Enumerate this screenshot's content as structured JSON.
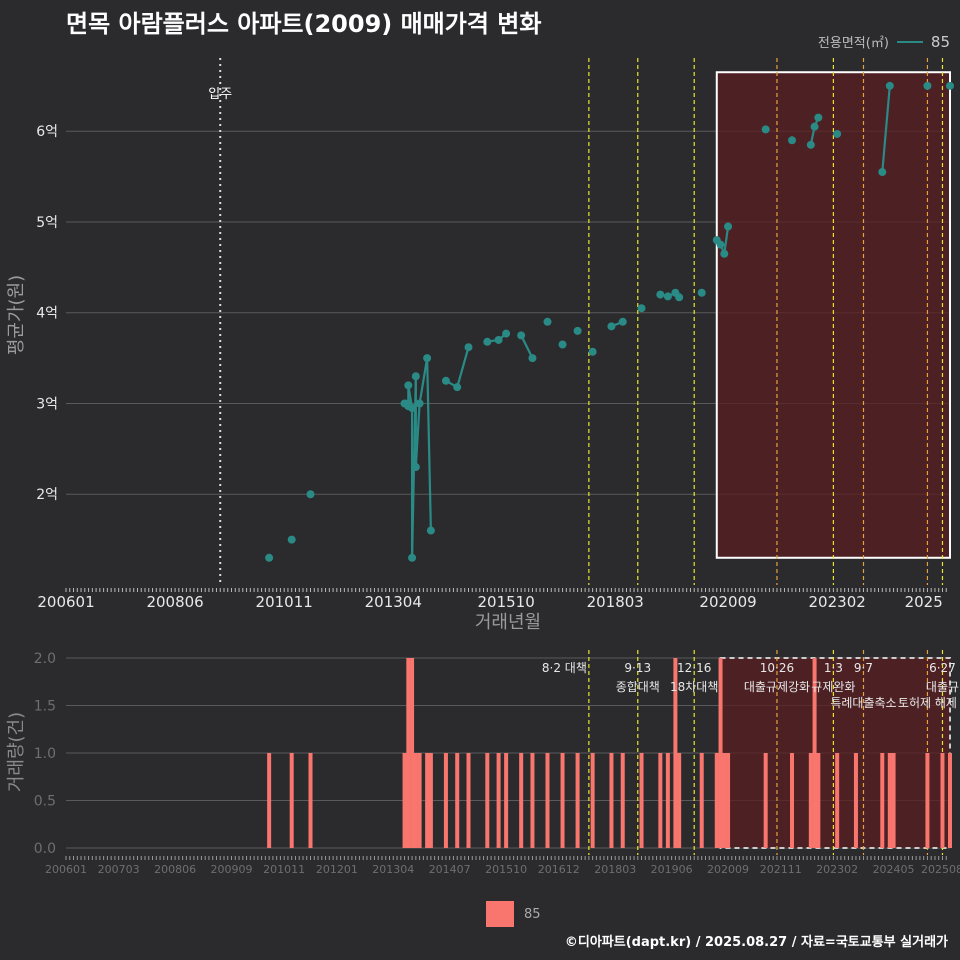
{
  "title": "면목 아람플러스 아파트(2009) 매매가격 변화",
  "footer": "©디아파트(dapt.kr) / 2025.08.27 / 자료=국토교통부 실거래가",
  "legend_top": {
    "title": "전용면적(㎡)",
    "label": "85"
  },
  "legend_bottom": {
    "label": "85"
  },
  "colors": {
    "background": "#2b2b2d",
    "price_series": "#2a8a86",
    "volume_bars": "#f8766d",
    "policy_line_yellow": "#e6e62e",
    "policy_line_orange": "#e6a23a",
    "highlight_box": "#5a1e22"
  },
  "chart_data": [
    {
      "type": "line",
      "name": "price",
      "ylabel": "평균가(원)",
      "xlabel": "거래년월",
      "y_unit": "억",
      "yticks": [
        {
          "v": 2,
          "label": "2억"
        },
        {
          "v": 3,
          "label": "3억"
        },
        {
          "v": 4,
          "label": "4억"
        },
        {
          "v": 5,
          "label": "5억"
        },
        {
          "v": 6,
          "label": "6억"
        }
      ],
      "ylim": [
        1.0,
        6.95
      ],
      "xlim": [
        "2006-01",
        "2025-08"
      ],
      "xticks": [
        "200601",
        "200806",
        "201011",
        "201304",
        "201510",
        "201803",
        "202009",
        "202302",
        "2025"
      ],
      "grid": "horizontal",
      "vertical_marker": {
        "x": "2009-06",
        "label": "입주"
      },
      "highlight_box": {
        "x0": "2020-06",
        "x1": "2025-08",
        "y0": 1.3,
        "y1": 6.65
      },
      "series": [
        {
          "name": "85",
          "points": [
            [
              "2010-07",
              1.3
            ],
            [
              "2011-01",
              1.5
            ],
            [
              "2011-06",
              2.0
            ],
            [
              "2013-07",
              3.0
            ],
            [
              "2013-08",
              2.97
            ],
            [
              "2013-08",
              3.0
            ],
            [
              "2013-08",
              3.2
            ],
            [
              "2013-09",
              2.95
            ],
            [
              "2013-09",
              1.3
            ],
            [
              "2013-10",
              3.3
            ],
            [
              "2013-10",
              2.3
            ],
            [
              "2013-11",
              3.0
            ],
            [
              "2014-01",
              3.5
            ],
            [
              "2014-02",
              1.6
            ],
            [
              "2014-06",
              3.25
            ],
            [
              "2014-09",
              3.18
            ],
            [
              "2014-12",
              3.62
            ],
            [
              "2015-05",
              3.68
            ],
            [
              "2015-08",
              3.7
            ],
            [
              "2015-10",
              3.77
            ],
            [
              "2016-02",
              3.75
            ],
            [
              "2016-05",
              3.5
            ],
            [
              "2016-09",
              3.9
            ],
            [
              "2017-01",
              3.65
            ],
            [
              "2017-05",
              3.8
            ],
            [
              "2017-09",
              3.57
            ],
            [
              "2018-02",
              3.85
            ],
            [
              "2018-05",
              3.9
            ],
            [
              "2018-10",
              4.05
            ],
            [
              "2019-03",
              4.2
            ],
            [
              "2019-05",
              4.18
            ],
            [
              "2019-07",
              4.22
            ],
            [
              "2019-08",
              4.17
            ],
            [
              "2020-02",
              4.22
            ],
            [
              "2020-06",
              4.8
            ],
            [
              "2020-07",
              4.75
            ],
            [
              "2020-08",
              4.65
            ],
            [
              "2020-09",
              4.95
            ],
            [
              "2021-07",
              6.02
            ],
            [
              "2022-02",
              5.9
            ],
            [
              "2022-07",
              5.85
            ],
            [
              "2022-08",
              6.05
            ],
            [
              "2022-09",
              6.15
            ],
            [
              "2023-02",
              5.97
            ],
            [
              "2024-02",
              5.55
            ],
            [
              "2024-04",
              6.5
            ],
            [
              "2025-02",
              6.5
            ],
            [
              "2025-08",
              6.5
            ]
          ]
        }
      ]
    },
    {
      "type": "bar",
      "name": "volume",
      "ylabel": "거래량(건)",
      "ylim": [
        0,
        2.0
      ],
      "yticks": [
        {
          "v": 0,
          "label": "0.0"
        },
        {
          "v": 0.5,
          "label": "0.5"
        },
        {
          "v": 1.0,
          "label": "1.0"
        },
        {
          "v": 1.5,
          "label": "1.5"
        },
        {
          "v": 2.0,
          "label": "2.0"
        }
      ],
      "xticks": [
        "200601",
        "200703",
        "200806",
        "200909",
        "201011",
        "201201",
        "201304",
        "201407",
        "201510",
        "201612",
        "201803",
        "201906",
        "202009",
        "202111",
        "202302",
        "202405",
        "202508"
      ],
      "highlight_box": {
        "x0": "2020-07",
        "x1": "2025-08"
      },
      "series": [
        {
          "name": "85",
          "bars": [
            [
              "2010-07",
              1
            ],
            [
              "2011-01",
              1
            ],
            [
              "2011-06",
              1
            ],
            [
              "2013-07",
              1
            ],
            [
              "2013-08",
              2
            ],
            [
              "2013-09",
              2
            ],
            [
              "2013-10",
              1
            ],
            [
              "2013-11",
              1
            ],
            [
              "2014-01",
              1
            ],
            [
              "2014-02",
              1
            ],
            [
              "2014-06",
              1
            ],
            [
              "2014-09",
              1
            ],
            [
              "2014-12",
              1
            ],
            [
              "2015-05",
              1
            ],
            [
              "2015-08",
              1
            ],
            [
              "2015-10",
              1
            ],
            [
              "2016-02",
              1
            ],
            [
              "2016-05",
              1
            ],
            [
              "2016-09",
              1
            ],
            [
              "2017-01",
              1
            ],
            [
              "2017-05",
              1
            ],
            [
              "2017-09",
              1
            ],
            [
              "2018-02",
              1
            ],
            [
              "2018-05",
              1
            ],
            [
              "2018-10",
              1
            ],
            [
              "2019-03",
              1
            ],
            [
              "2019-05",
              1
            ],
            [
              "2019-07",
              2
            ],
            [
              "2019-08",
              1
            ],
            [
              "2020-02",
              1
            ],
            [
              "2020-06",
              1
            ],
            [
              "2020-07",
              2
            ],
            [
              "2020-08",
              1
            ],
            [
              "2020-09",
              1
            ],
            [
              "2021-07",
              1
            ],
            [
              "2022-02",
              1
            ],
            [
              "2022-07",
              1
            ],
            [
              "2022-08",
              2
            ],
            [
              "2022-09",
              1
            ],
            [
              "2023-02",
              1
            ],
            [
              "2023-07",
              1
            ],
            [
              "2024-02",
              1
            ],
            [
              "2024-04",
              1
            ],
            [
              "2024-05",
              1
            ],
            [
              "2025-02",
              1
            ],
            [
              "2025-06",
              1
            ],
            [
              "2025-08",
              1
            ]
          ]
        }
      ]
    }
  ],
  "policy_events": [
    {
      "date": "2017-08",
      "line": "yellow",
      "label": "8·2 대책",
      "label2": ""
    },
    {
      "date": "2018-09",
      "line": "yellow",
      "label": "9·13",
      "label2": "종합대책"
    },
    {
      "date": "2019-12",
      "line": "yellow",
      "label": "12·16",
      "label2": "18차대책"
    },
    {
      "date": "2021-10",
      "line": "orange",
      "label": "10·26",
      "label2": "대출규제강화"
    },
    {
      "date": "2023-01",
      "line": "yellow",
      "label": "1·3",
      "label2": "규제완화"
    },
    {
      "date": "2023-09",
      "line": "orange",
      "label": "9·7",
      "label2": "특례대출축소"
    },
    {
      "date": "2025-02",
      "line": "orange",
      "label": "",
      "label2": "토허제 해제"
    },
    {
      "date": "2025-06",
      "line": "yellow",
      "label": "6·27",
      "label2": "대출규"
    }
  ]
}
